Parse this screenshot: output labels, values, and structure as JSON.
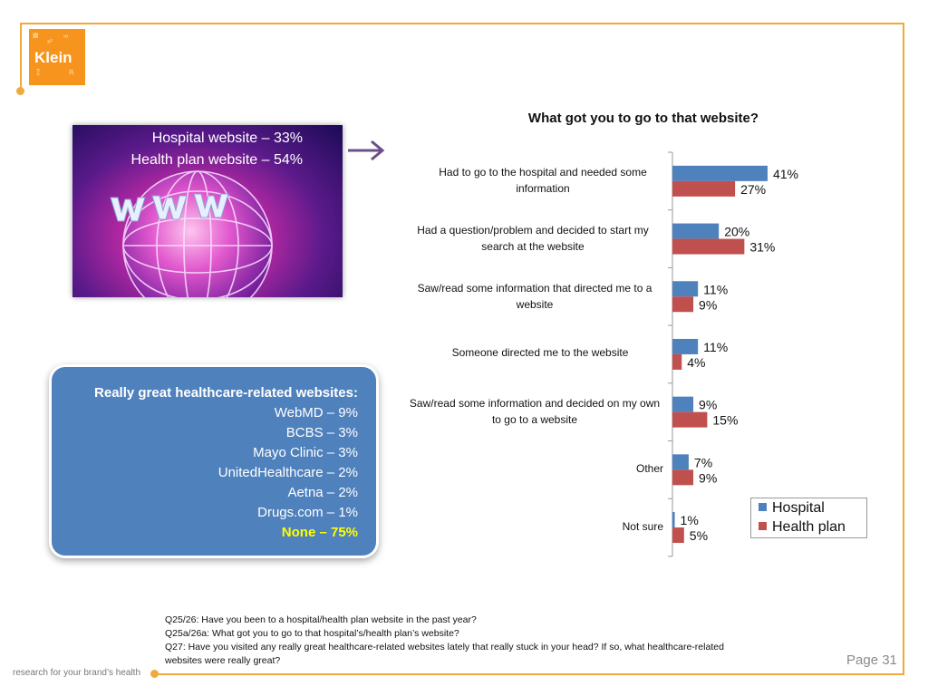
{
  "brand": {
    "logo_text": "Klein",
    "tagline": "research for your brand’s health",
    "page": "Page 31"
  },
  "web_box": {
    "line1": "Hospital website – 33%",
    "line2": "Health plan website – 54%"
  },
  "sites": {
    "title": "Really great healthcare-related websites:",
    "items": [
      "WebMD – 9%",
      "BCBS – 3%",
      "Mayo Clinic – 3%",
      "UnitedHealthcare – 2%",
      "Aetna – 2%",
      "Drugs.com – 1%"
    ],
    "none": "None – 75%"
  },
  "chart_data": {
    "type": "bar",
    "orientation": "horizontal",
    "title": "What got you to go to that website?",
    "categories": [
      "Had to go to the hospital and needed some information",
      "Had a question/problem and decided to start my search at the website",
      "Saw/read some information that directed me to a website",
      "Someone directed me to the website",
      "Saw/read some information and decided on my own to go to a website",
      "Other",
      "Not sure"
    ],
    "series": [
      {
        "name": "Hospital",
        "color": "#4f81bd",
        "values": [
          41,
          20,
          11,
          11,
          9,
          7,
          1
        ]
      },
      {
        "name": "Health plan",
        "color": "#c0504d",
        "values": [
          27,
          31,
          9,
          4,
          15,
          9,
          5
        ]
      }
    ],
    "value_suffix": "%",
    "xlim": [
      0,
      60
    ],
    "legend": "bottom-right",
    "grid": false
  },
  "footnotes": [
    "Q25/26: Have you been to a hospital/health plan website in the past year?",
    "Q25a/26a:  What got you to go to that hospital’s/health plan’s website?",
    "Q27:  Have you visited any really great healthcare-related websites lately that really stuck in your head?  If so, what healthcare-related",
    "websites were really great?"
  ]
}
